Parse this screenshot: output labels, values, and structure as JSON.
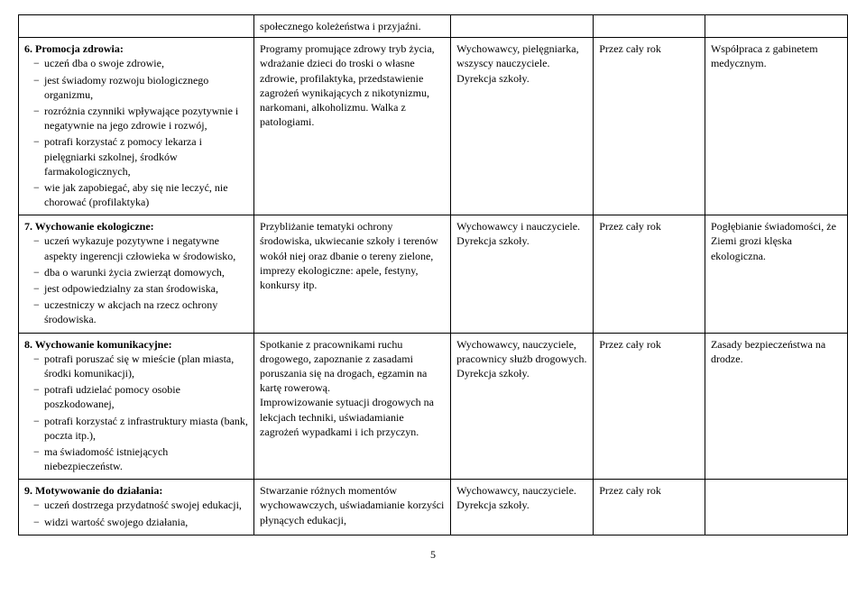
{
  "row0": {
    "c2": "społecznego koleżeństwa i przyjaźni."
  },
  "row1": {
    "title": "6. Promocja zdrowia:",
    "items": [
      "uczeń dba o swoje zdrowie,",
      "jest świadomy rozwoju biologicznego organizmu,",
      "rozróżnia czynniki wpływające pozytywnie i negatywnie na jego zdrowie i rozwój,",
      "potrafi korzystać z pomocy lekarza i pielęgniarki szkolnej, środków farmakologicznych,",
      "wie jak zapobiegać, aby się nie leczyć, nie chorować (profilaktyka)"
    ],
    "c2": "Programy promujące zdrowy tryb życia, wdrażanie dzieci do troski o własne zdrowie, profilaktyka, przedstawienie zagrożeń wynikających z nikotynizmu, narkomani, alkoholizmu. Walka z patologiami.",
    "c3": "Wychowawcy, pielęgniarka, wszyscy nauczyciele.\nDyrekcja szkoły.",
    "c4": "Przez cały rok",
    "c5": "Współpraca z gabinetem medycznym."
  },
  "row2": {
    "title": "7. Wychowanie ekologiczne:",
    "items": [
      "uczeń wykazuje pozytywne i negatywne aspekty ingerencji człowieka w środowisko,",
      "dba o warunki życia zwierząt domowych,",
      "jest odpowiedzialny za stan środowiska,",
      "uczestniczy w akcjach na rzecz ochrony środowiska."
    ],
    "c2": "Przybliżanie tematyki ochrony środowiska, ukwiecanie szkoły i terenów wokół niej oraz dbanie o tereny zielone, imprezy ekologiczne: apele, festyny, konkursy itp.",
    "c3": "Wychowawcy i nauczyciele.\nDyrekcja szkoły.",
    "c4": "Przez cały rok",
    "c5": "Pogłębianie świadomości, że Ziemi grozi klęska ekologiczna."
  },
  "row3": {
    "title": "8. Wychowanie komunikacyjne:",
    "items": [
      "potrafi poruszać się w mieście (plan miasta, środki komunikacji),",
      "potrafi udzielać pomocy osobie poszkodowanej,",
      "potrafi korzystać z infrastruktury miasta (bank, poczta itp.),",
      "ma świadomość istniejących niebezpieczeństw."
    ],
    "c2": "Spotkanie z pracownikami ruchu drogowego, zapoznanie z zasadami poruszania się na drogach, egzamin na kartę rowerową.\nImprowizowanie sytuacji drogowych na lekcjach techniki, uświadamianie zagrożeń wypadkami i ich przyczyn.",
    "c3": "Wychowawcy, nauczyciele, pracownicy służb drogowych.\nDyrekcja szkoły.",
    "c4": "Przez cały rok",
    "c5": "Zasady bezpieczeństwa na drodze."
  },
  "row4": {
    "title": "9. Motywowanie do działania:",
    "items": [
      "uczeń dostrzega przydatność swojej edukacji,",
      "widzi wartość swojego działania,"
    ],
    "c2": "Stwarzanie różnych momentów wychowawczych, uświadamianie korzyści płynących edukacji,",
    "c3": "Wychowawcy, nauczyciele.\nDyrekcja szkoły.",
    "c4": "Przez cały rok",
    "c5": ""
  },
  "pageNumber": "5"
}
